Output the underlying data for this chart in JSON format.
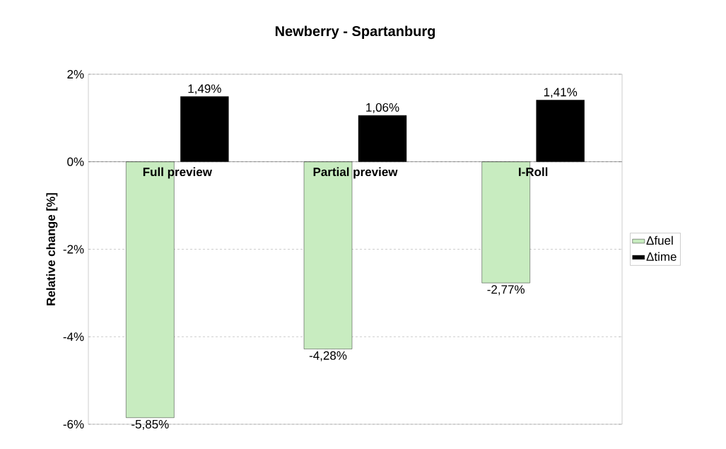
{
  "chart_data": {
    "type": "bar",
    "title": "Newberry - Spartanburg",
    "ylabel": "Relative change [%]",
    "categories": [
      "Full preview",
      "Partial preview",
      "I-Roll"
    ],
    "series": [
      {
        "name": "Δfuel",
        "color": "#c8ecc0",
        "values": [
          -5.85,
          -4.28,
          -2.77
        ],
        "value_labels": [
          "-5,85%",
          "-4,28%",
          "-2,77%"
        ]
      },
      {
        "name": "Δtime",
        "color": "#000000",
        "values": [
          1.49,
          1.06,
          1.41
        ],
        "value_labels": [
          "1,49%",
          "1,06%",
          "1,41%"
        ]
      }
    ],
    "ylim": [
      -6,
      2
    ],
    "yticks": [
      {
        "value": -6,
        "label": "-6%"
      },
      {
        "value": -4,
        "label": "-4%"
      },
      {
        "value": -2,
        "label": "-2%"
      },
      {
        "value": 0,
        "label": "0%"
      },
      {
        "value": 2,
        "label": "2%"
      }
    ],
    "grid": "y",
    "legend": "right"
  }
}
